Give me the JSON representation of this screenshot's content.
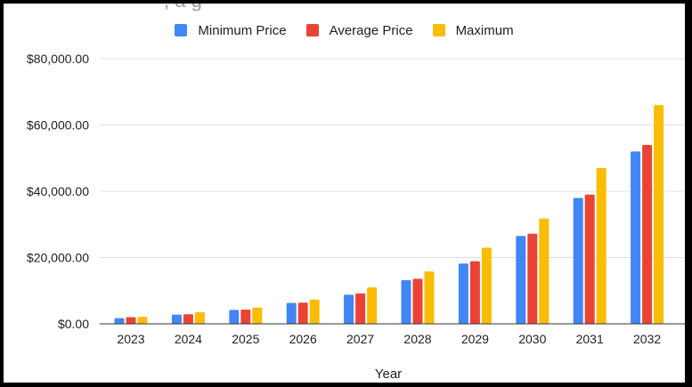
{
  "colors": {
    "min": "#4285f4",
    "avg": "#ea4335",
    "max": "#fbbc04",
    "grid": "#e0e0e0",
    "axis": "#333333"
  },
  "chart_data": {
    "type": "bar",
    "title_fragment": ", a  g",
    "categories": [
      "2023",
      "2024",
      "2025",
      "2026",
      "2027",
      "2028",
      "2029",
      "2030",
      "2031",
      "2032"
    ],
    "series": [
      {
        "name": "Minimum Price",
        "color_key": "min",
        "values": [
          1700,
          2800,
          4200,
          6300,
          8800,
          13200,
          18200,
          26500,
          38000,
          52000
        ]
      },
      {
        "name": "Average Price",
        "color_key": "avg",
        "values": [
          2000,
          2900,
          4300,
          6400,
          9200,
          13600,
          18900,
          27200,
          39000,
          54000
        ]
      },
      {
        "name": "Maximum",
        "color_key": "max",
        "values": [
          2100,
          3500,
          4900,
          7300,
          11000,
          15800,
          23000,
          31800,
          47000,
          66000
        ]
      }
    ],
    "xlabel": "Year",
    "ylabel": "",
    "ylim": [
      0,
      80000
    ],
    "yticks": [
      0,
      20000,
      40000,
      60000,
      80000
    ],
    "ytick_labels": [
      "$0.00",
      "$20,000.00",
      "$40,000.00",
      "$60,000.00",
      "$80,000.00"
    ],
    "grid": true,
    "legend_position": "top-center"
  }
}
